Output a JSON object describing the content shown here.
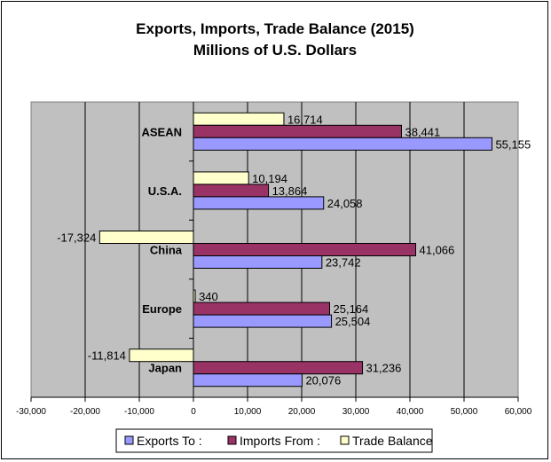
{
  "chart_data": {
    "type": "bar",
    "orientation": "horizontal",
    "title": "Exports, Imports, Trade Balance (2015)",
    "subtitle": "Millions of U.S. Dollars",
    "categories": [
      "ASEAN",
      "U.S.A.",
      "China",
      "Europe",
      "Japan"
    ],
    "series": [
      {
        "name": "Exports To :",
        "color": "#9999ff",
        "values": [
          55155,
          24058,
          23742,
          25504,
          20076
        ],
        "labels": [
          "55,155",
          "24,058",
          "23,742",
          "25,504",
          "20,076"
        ]
      },
      {
        "name": "Imports From :",
        "color": "#993366",
        "values": [
          38441,
          13864,
          41066,
          25164,
          31236
        ],
        "labels": [
          "38,441",
          "13,864",
          "41,066",
          "25,164",
          "31,236"
        ]
      },
      {
        "name": "Trade Balance",
        "color": "#ffffcc",
        "values": [
          16714,
          10194,
          -17324,
          340,
          -11814
        ],
        "labels": [
          "16,714",
          "10,194",
          "-17,324",
          "340",
          "-11,814"
        ]
      }
    ],
    "xlim": [
      -30000,
      60000
    ],
    "x_ticks": [
      -30000,
      -20000,
      -10000,
      0,
      10000,
      20000,
      30000,
      40000,
      50000,
      60000
    ],
    "x_tick_labels": [
      "-30,000",
      "-20,000",
      "-10,000",
      "0",
      "10,000",
      "20,000",
      "30,000",
      "40,000",
      "50,000",
      "60,000"
    ],
    "grid": true,
    "legend_position": "bottom",
    "plot_background": "#c0c0c0"
  }
}
